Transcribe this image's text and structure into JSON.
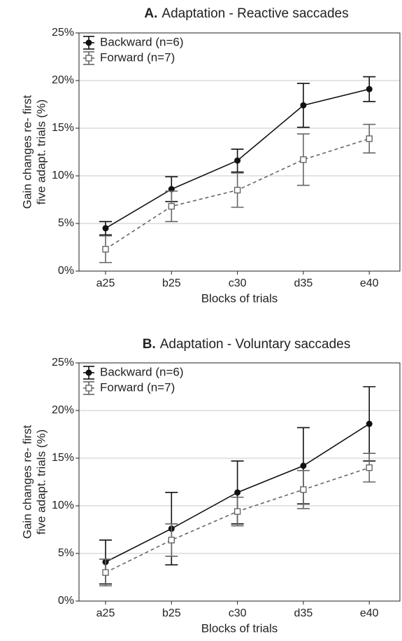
{
  "chart_data": [
    {
      "type": "line",
      "panel": "A.",
      "title": "Adaptation - Reactive saccades",
      "xlabel": "Blocks of trials",
      "ylabel": [
        "Gain changes re- first",
        "five adapt. trials (%)"
      ],
      "categories": [
        "a25",
        "b25",
        "c30",
        "d35",
        "e40"
      ],
      "ylim": [
        0,
        25
      ],
      "yticks": [
        {
          "value": 0,
          "label": "0%"
        },
        {
          "value": 5,
          "label": "5%"
        },
        {
          "value": 10,
          "label": "10%"
        },
        {
          "value": 15,
          "label": "15%"
        },
        {
          "value": 20,
          "label": "20%"
        },
        {
          "value": 25,
          "label": "25%"
        }
      ],
      "grid": true,
      "legend": "upper left",
      "series": [
        {
          "name": "Backward (n=6)",
          "color": "#111111",
          "marker": "circle",
          "dash": false,
          "values": [
            4.5,
            8.6,
            11.6,
            17.4,
            19.1
          ],
          "errors": [
            0.7,
            1.3,
            1.2,
            2.3,
            1.3
          ]
        },
        {
          "name": "Forward (n=7)",
          "color": "#666666",
          "marker": "square",
          "dash": true,
          "values": [
            2.3,
            6.8,
            8.5,
            11.7,
            13.9
          ],
          "errors": [
            1.4,
            1.6,
            1.8,
            2.7,
            1.5
          ]
        }
      ]
    },
    {
      "type": "line",
      "panel": "B.",
      "title": "Adaptation - Voluntary saccades",
      "xlabel": "Blocks of trials",
      "ylabel": [
        "Gain changes re- first",
        "five adapt. trials (%)"
      ],
      "categories": [
        "a25",
        "b25",
        "c30",
        "d35",
        "e40"
      ],
      "ylim": [
        0,
        25
      ],
      "yticks": [
        {
          "value": 0,
          "label": "0%"
        },
        {
          "value": 5,
          "label": "5%"
        },
        {
          "value": 10,
          "label": "10%"
        },
        {
          "value": 15,
          "label": "15%"
        },
        {
          "value": 20,
          "label": "20%"
        },
        {
          "value": 25,
          "label": "25%"
        }
      ],
      "grid": true,
      "legend": "upper left",
      "series": [
        {
          "name": "Backward (n=6)",
          "color": "#111111",
          "marker": "circle",
          "dash": false,
          "values": [
            4.1,
            7.6,
            11.4,
            14.2,
            18.6
          ],
          "errors": [
            2.3,
            3.8,
            3.3,
            4.0,
            3.9
          ]
        },
        {
          "name": "Forward (n=7)",
          "color": "#666666",
          "marker": "square",
          "dash": true,
          "values": [
            3.0,
            6.4,
            9.4,
            11.7,
            14.0
          ],
          "errors": [
            1.4,
            1.7,
            1.5,
            2.0,
            1.5
          ]
        }
      ]
    }
  ]
}
